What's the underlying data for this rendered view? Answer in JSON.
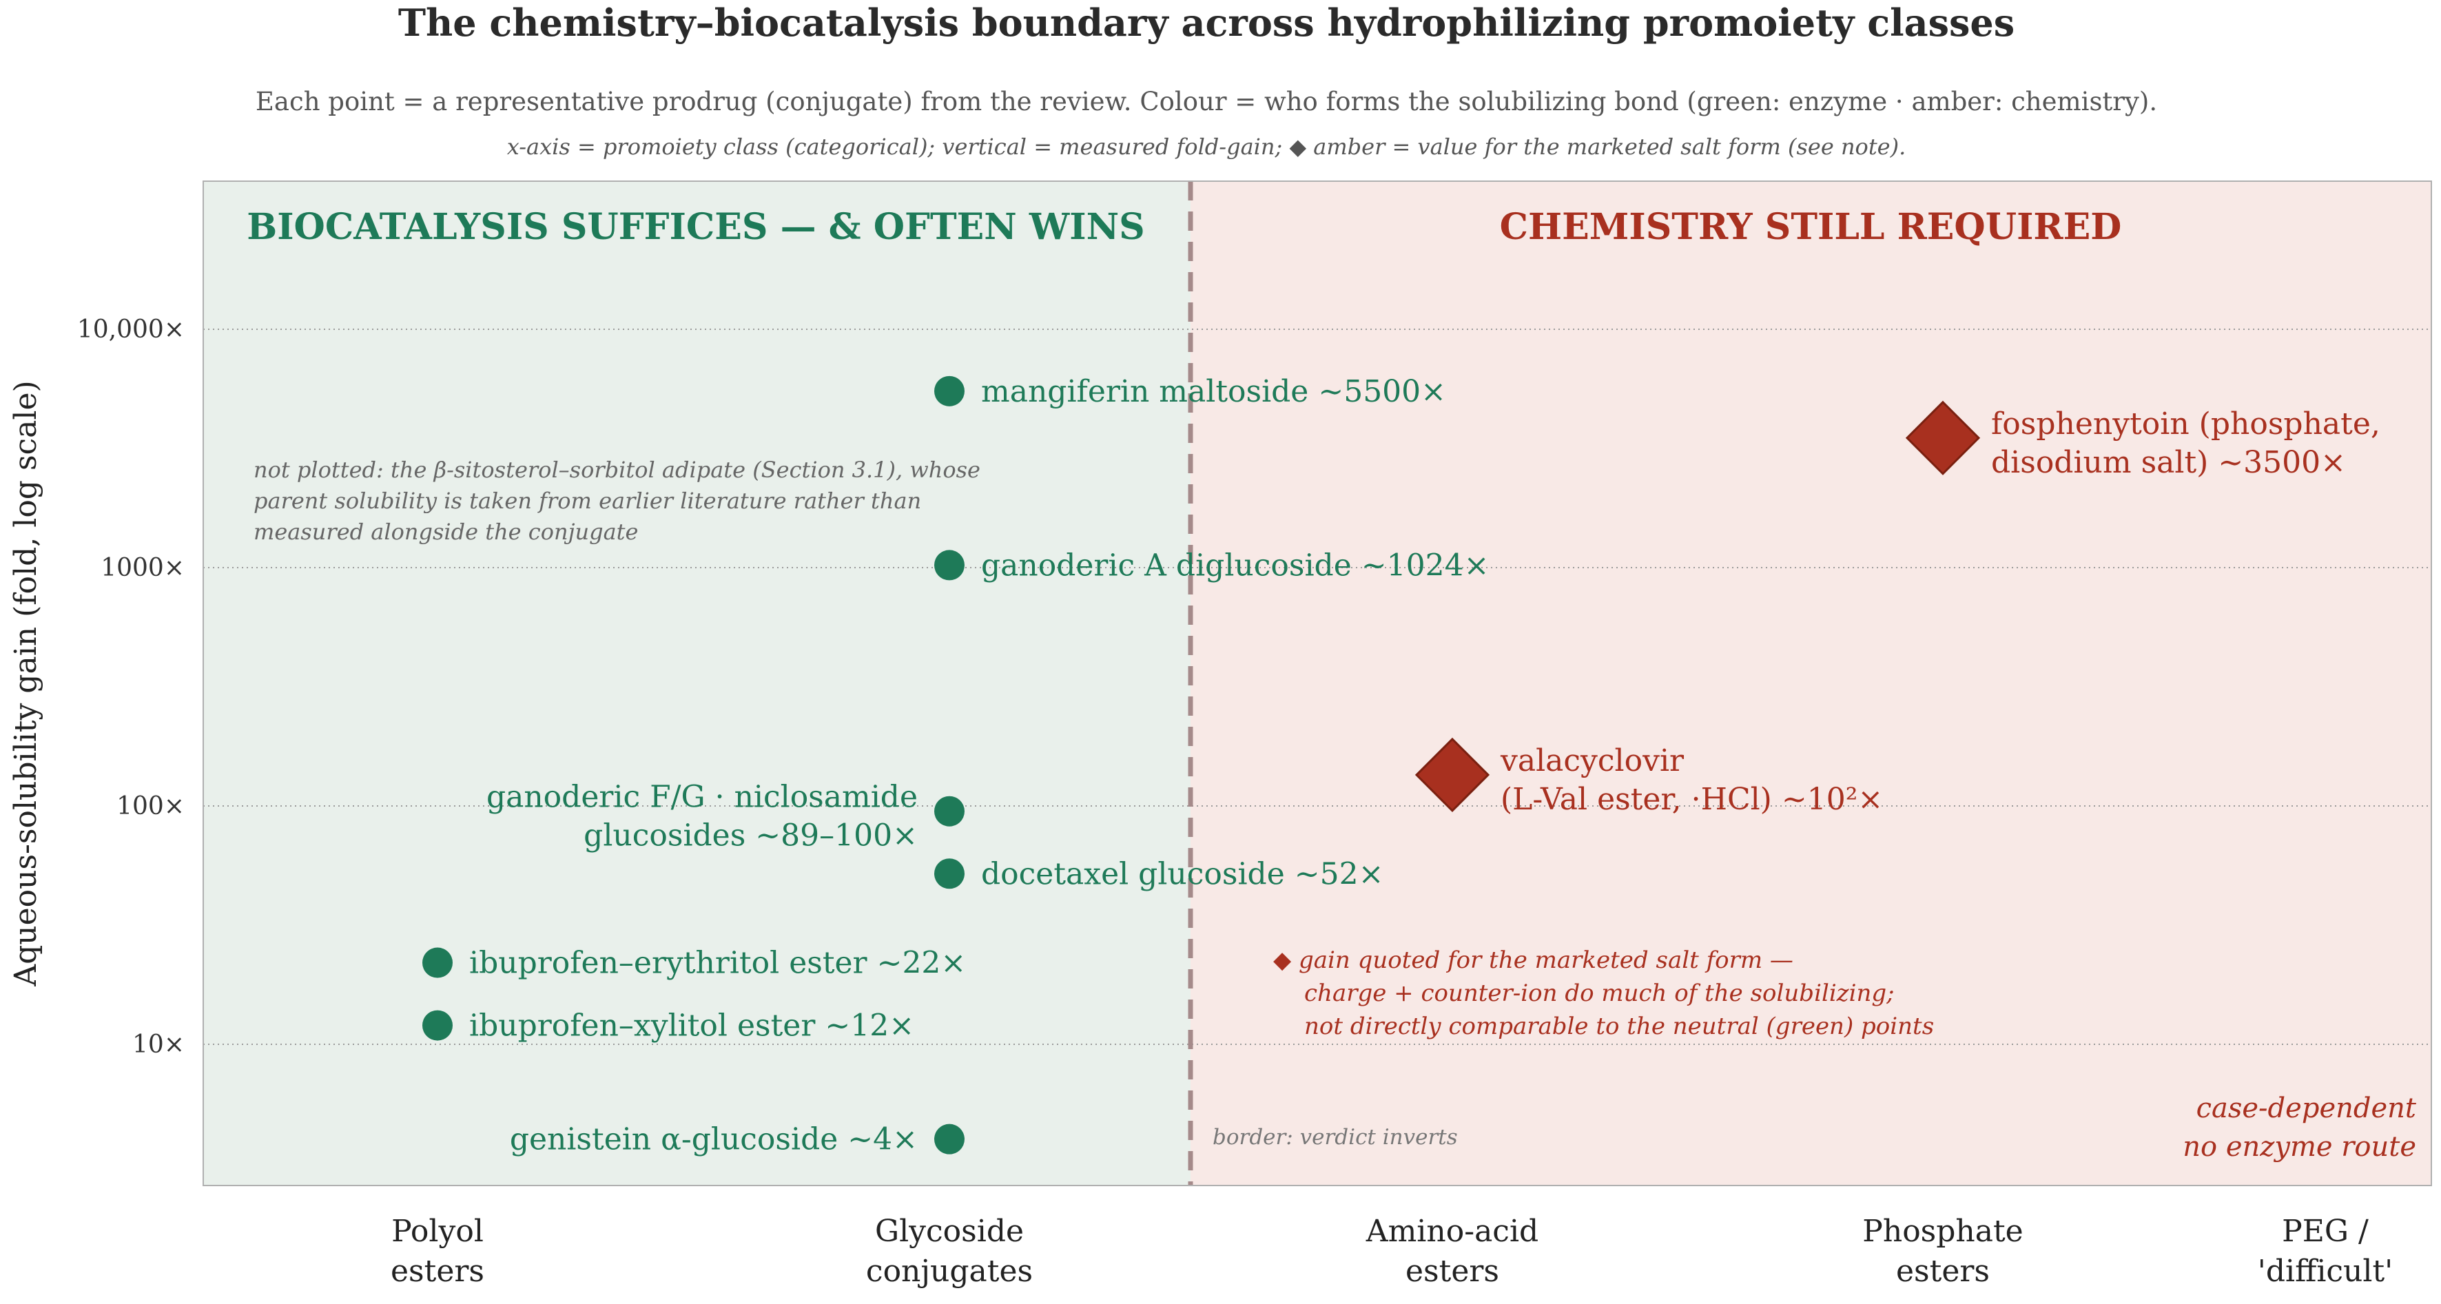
{
  "colors": {
    "green": "#1e7a58",
    "red": "#a8301f",
    "green_bg": "#e9f0eb",
    "red_bg": "#f8e9e6",
    "gray": "#555555",
    "divider": "#a58a8a"
  },
  "chart_data": {
    "type": "scatter",
    "title": "The chemistry–biocatalysis boundary across hydrophilizing promoiety classes",
    "subtitle": "Each point = a representative prodrug (conjugate) from the review.  Colour = who forms the solubilizing bond (green: enzyme · amber: chemistry).",
    "subtitle2": "x-axis = promoiety class (categorical); vertical = measured fold-gain;  ◆ amber = value for the marketed salt form (see note).",
    "ylabel": "Aqueous-solubility gain  (fold, log scale)",
    "yscale": "log",
    "ylim": [
      2.2,
      28000
    ],
    "categories": [
      {
        "line1": "Polyol",
        "line2": "esters"
      },
      {
        "line1": "Glycoside",
        "line2": "conjugates"
      },
      {
        "line1": "Amino-acid",
        "line2": "esters"
      },
      {
        "line1": "Phosphate",
        "line2": "esters"
      },
      {
        "line1": "PEG /",
        "line2": "'difficult'"
      }
    ],
    "yticks": [
      {
        "value": 10,
        "label": "10×"
      },
      {
        "value": 100,
        "label": "100×"
      },
      {
        "value": 1000,
        "label": "1000×"
      },
      {
        "value": 10000,
        "label": "10,000×"
      }
    ],
    "grid": true,
    "regions": {
      "left_title": "BIOCATALYSIS SUFFICES — & OFTEN WINS",
      "right_title": "CHEMISTRY STILL REQUIRED",
      "border_label": "border: verdict inverts"
    },
    "points": [
      {
        "category": 0,
        "y": 22,
        "type": "enzyme",
        "label1": "ibuprofen–erythritol ester  ~22×",
        "label2": "",
        "side": "right"
      },
      {
        "category": 0,
        "y": 12,
        "type": "enzyme",
        "label1": "ibuprofen–xylitol ester  ~12×",
        "label2": "",
        "side": "right"
      },
      {
        "category": 1,
        "y": 5500,
        "type": "enzyme",
        "label1": "mangiferin maltoside  ~5500×",
        "label2": "",
        "side": "right"
      },
      {
        "category": 1,
        "y": 1024,
        "type": "enzyme",
        "label1": "ganoderic A diglucoside  ~1024×",
        "label2": "",
        "side": "right"
      },
      {
        "category": 1,
        "y": 95,
        "type": "enzyme",
        "label1": "ganoderic F/G · niclosamide",
        "label2": "glucosides  ~89–100×",
        "side": "left"
      },
      {
        "category": 1,
        "y": 52,
        "type": "enzyme",
        "label1": "docetaxel glucoside  ~52×",
        "label2": "",
        "side": "right"
      },
      {
        "category": 1,
        "y": 4,
        "type": "enzyme",
        "label1": "genistein α-glucoside  ~4×",
        "label2": "",
        "side": "left"
      },
      {
        "category": 2,
        "y": 135,
        "type": "chemistry",
        "label1": "valacyclovir",
        "label2": "(L-Val ester, ·HCl)  ~10²×",
        "side": "right"
      },
      {
        "category": 3,
        "y": 3500,
        "type": "chemistry",
        "label1": "fosphenytoin (phosphate,",
        "label2": "disodium salt)  ~3500×",
        "side": "right"
      }
    ],
    "annotations": {
      "not_plotted": [
        "not plotted: the β-sitosterol–sorbitol adipate (Section 3.1), whose",
        "parent solubility is taken from earlier literature rather than",
        "measured alongside the conjugate"
      ],
      "salt_note": [
        "◆  gain quoted for the marketed salt form —",
        "charge + counter-ion do much of the solubilizing;",
        "not directly comparable to the neutral (green) points"
      ],
      "case_dependent": [
        "case-dependent",
        "no enzyme route"
      ]
    }
  }
}
